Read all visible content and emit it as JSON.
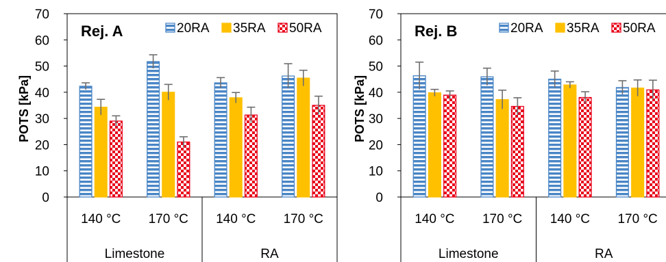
{
  "chart_data": [
    {
      "type": "bar",
      "title": "Rej. A",
      "ylabel": "POTS [kPa]",
      "ylim": [
        0,
        70
      ],
      "yticks": [
        0,
        10,
        20,
        30,
        40,
        50,
        60,
        70
      ],
      "grid": false,
      "legend_position": "top-right",
      "categories": [
        "140 °C",
        "170 °C",
        "140 °C",
        "170 °C"
      ],
      "groups": [
        {
          "label": "Limestone",
          "span": 2
        },
        {
          "label": "RA",
          "span": 2
        }
      ],
      "series": [
        {
          "name": "20RA",
          "values": [
            42.3,
            51.7,
            43.6,
            46.2
          ],
          "errors": [
            1.3,
            2.6,
            2.0,
            4.7
          ],
          "pattern": "horizontal-stripes",
          "color": "#4a86c6"
        },
        {
          "name": "35RA",
          "values": [
            34.3,
            40.0,
            37.9,
            45.4
          ],
          "errors": [
            3.0,
            3.0,
            2.0,
            3.0
          ],
          "pattern": "solid",
          "color": "#ffc000"
        },
        {
          "name": "50RA",
          "values": [
            29.0,
            21.0,
            31.3,
            35.0
          ],
          "errors": [
            2.0,
            2.0,
            3.0,
            3.5
          ],
          "pattern": "checkerboard",
          "color": "#e8001a"
        }
      ]
    },
    {
      "type": "bar",
      "title": "Rej. B",
      "ylabel": "POTS [kPa]",
      "ylim": [
        0,
        70
      ],
      "yticks": [
        0,
        10,
        20,
        30,
        40,
        50,
        60,
        70
      ],
      "grid": false,
      "legend_position": "top-right",
      "categories": [
        "140 °C",
        "170 °C",
        "140 °C",
        "170 °C"
      ],
      "groups": [
        {
          "label": "Limestone",
          "span": 2
        },
        {
          "label": "RA",
          "span": 2
        }
      ],
      "series": [
        {
          "name": "20RA",
          "values": [
            46.3,
            45.9,
            45.0,
            41.8
          ],
          "errors": [
            5.2,
            3.3,
            3.1,
            2.6
          ],
          "pattern": "horizontal-stripes",
          "color": "#4a86c6"
        },
        {
          "name": "35RA",
          "values": [
            39.8,
            37.2,
            42.8,
            41.6
          ],
          "errors": [
            1.3,
            3.6,
            1.2,
            3.1
          ],
          "pattern": "solid",
          "color": "#ffc000"
        },
        {
          "name": "50RA",
          "values": [
            38.9,
            34.6,
            38.0,
            40.9
          ],
          "errors": [
            1.6,
            3.3,
            2.2,
            3.7
          ],
          "pattern": "checkerboard",
          "color": "#e8001a"
        }
      ]
    }
  ]
}
